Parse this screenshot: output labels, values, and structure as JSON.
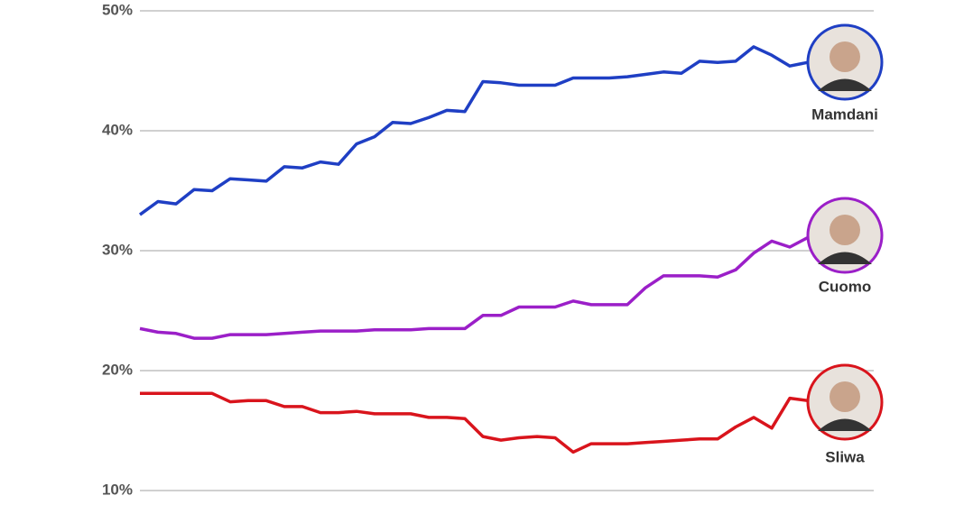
{
  "chart_data": {
    "type": "line",
    "categories": [
      null,
      null,
      null,
      null,
      null,
      null,
      null,
      null,
      null,
      null,
      null,
      null,
      null,
      null,
      null,
      null,
      null,
      null,
      null,
      null,
      null,
      null,
      null,
      null,
      null,
      null,
      null,
      null,
      null,
      null,
      null,
      null,
      null,
      null,
      null,
      null,
      null,
      null
    ],
    "series": [
      {
        "name": "Mamdani",
        "color": "#1f3fc4",
        "values": [
          33.0,
          34.1,
          33.9,
          35.1,
          35.0,
          36.0,
          35.9,
          35.8,
          37.0,
          36.9,
          37.4,
          37.2,
          38.9,
          39.5,
          40.7,
          40.6,
          41.1,
          41.7,
          41.6,
          44.1,
          44.0,
          43.8,
          43.8,
          43.8,
          44.4,
          44.4,
          44.4,
          44.5,
          44.7,
          44.9,
          44.8,
          45.8,
          45.7,
          45.8,
          47.0,
          46.3,
          45.4,
          45.7
        ]
      },
      {
        "name": "Cuomo",
        "color": "#9b1fc8",
        "values": [
          23.5,
          23.2,
          23.1,
          22.7,
          22.7,
          23.0,
          23.0,
          23.0,
          23.1,
          23.2,
          23.3,
          23.3,
          23.3,
          23.4,
          23.4,
          23.4,
          23.5,
          23.5,
          23.5,
          24.6,
          24.6,
          25.3,
          25.3,
          25.3,
          25.8,
          25.5,
          25.5,
          25.5,
          26.9,
          27.9,
          27.9,
          27.9,
          27.8,
          28.4,
          29.8,
          30.8,
          30.3,
          31.1
        ]
      },
      {
        "name": "Sliwa",
        "color": "#d9141c",
        "values": [
          18.1,
          18.1,
          18.1,
          18.1,
          18.1,
          17.4,
          17.5,
          17.5,
          17.0,
          17.0,
          16.5,
          16.5,
          16.6,
          16.4,
          16.4,
          16.4,
          16.1,
          16.1,
          16.0,
          14.5,
          14.2,
          14.4,
          14.5,
          14.4,
          13.2,
          13.9,
          13.9,
          13.9,
          14.0,
          14.1,
          14.2,
          14.3,
          14.3,
          15.3,
          16.1,
          15.2,
          17.7,
          17.5
        ]
      }
    ],
    "ylim": [
      10,
      50
    ],
    "yticks": [
      {
        "value": 10,
        "label": "10%"
      },
      {
        "value": 20,
        "label": "20%"
      },
      {
        "value": 30,
        "label": "30%"
      },
      {
        "value": 40,
        "label": "40%"
      },
      {
        "value": 50,
        "label": "50%"
      }
    ],
    "grid": true
  }
}
